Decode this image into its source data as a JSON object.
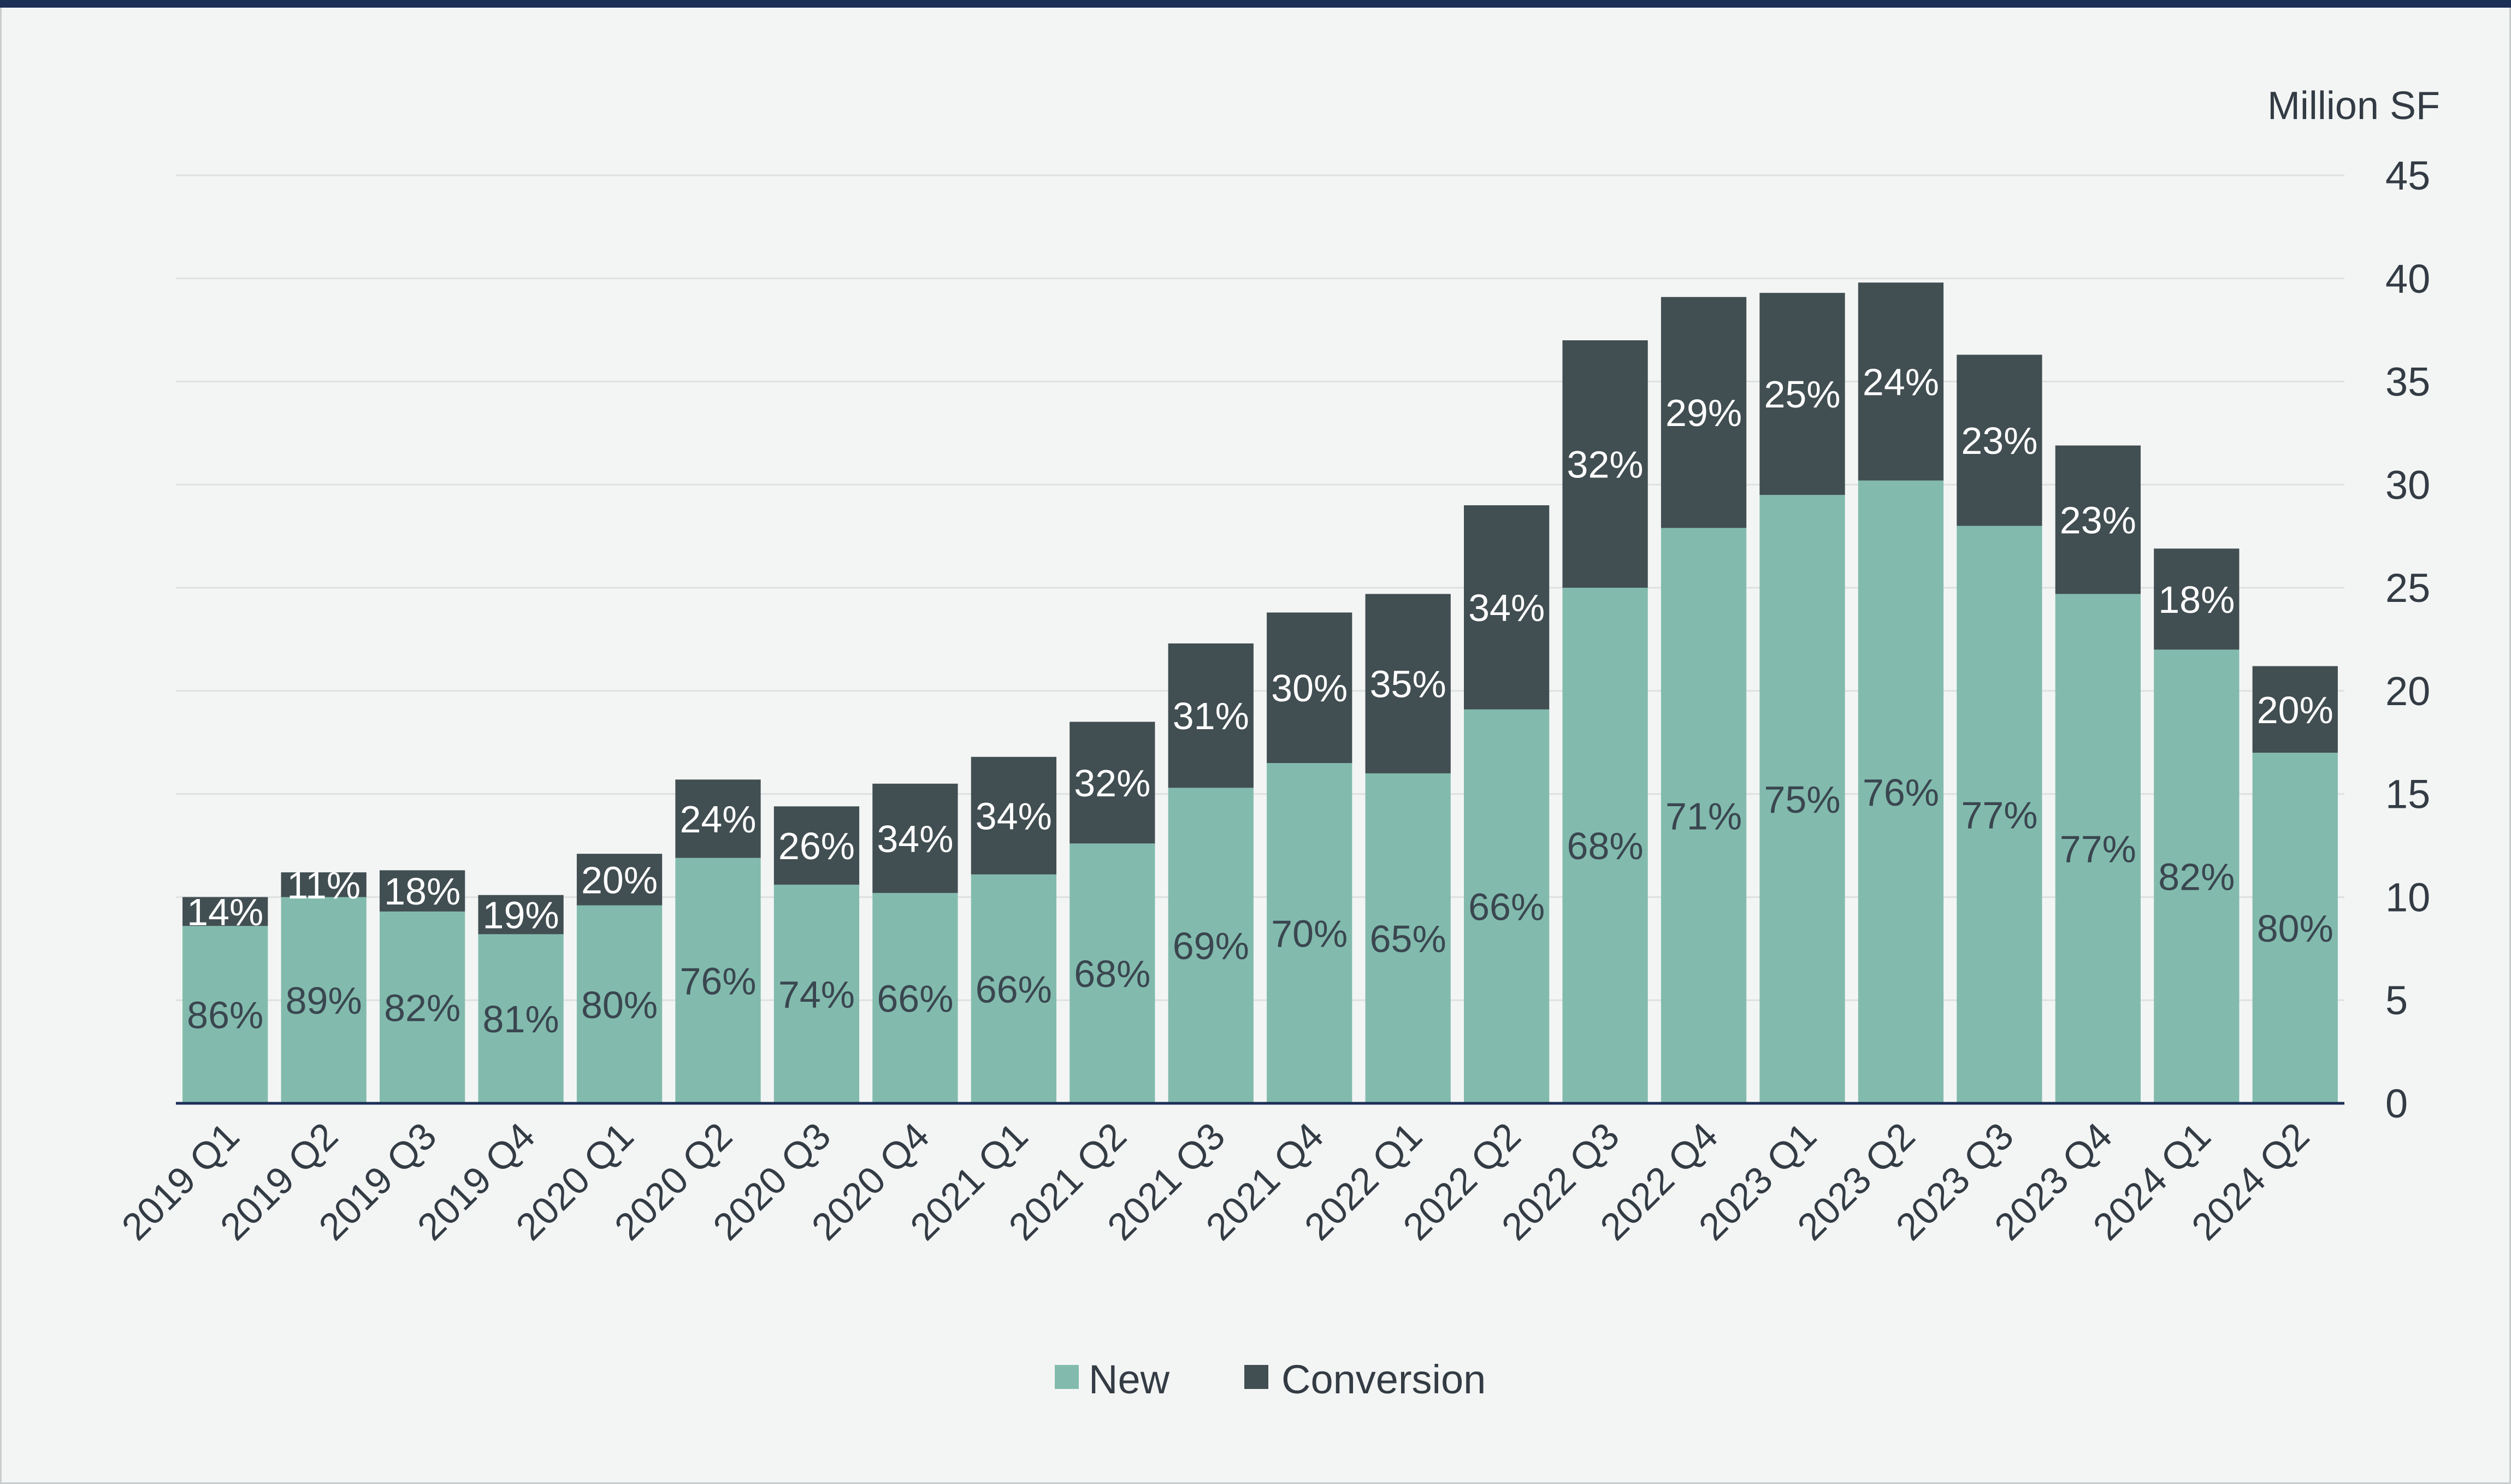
{
  "chart_data": {
    "type": "bar",
    "stacked": true,
    "unit_label": "Million SF",
    "ylim": [
      0,
      45
    ],
    "yticks": [
      0,
      5,
      10,
      15,
      20,
      25,
      30,
      35,
      40,
      45
    ],
    "grid": true,
    "legend_position": "bottom-center",
    "categories": [
      "2019 Q1",
      "2019 Q2",
      "2019 Q3",
      "2019 Q4",
      "2020 Q1",
      "2020 Q2",
      "2020 Q3",
      "2020 Q4",
      "2021 Q1",
      "2021 Q2",
      "2021 Q3",
      "2021 Q4",
      "2022 Q1",
      "2022 Q2",
      "2022 Q3",
      "2022 Q4",
      "2023 Q1",
      "2023 Q2",
      "2023 Q3",
      "2023 Q4",
      "2024 Q1",
      "2024 Q2"
    ],
    "series": [
      {
        "name": "New",
        "color": "#82bbad",
        "values": [
          8.6,
          10.0,
          9.3,
          8.2,
          9.6,
          11.9,
          10.6,
          10.2,
          11.1,
          12.6,
          15.3,
          16.5,
          16.0,
          19.1,
          25.0,
          27.9,
          29.5,
          30.2,
          28.0,
          24.7,
          22.0,
          17.0
        ],
        "labels": [
          "86%",
          "89%",
          "82%",
          "81%",
          "80%",
          "76%",
          "74%",
          "66%",
          "66%",
          "68%",
          "69%",
          "70%",
          "65%",
          "66%",
          "68%",
          "71%",
          "75%",
          "76%",
          "77%",
          "77%",
          "82%",
          "80%"
        ]
      },
      {
        "name": "Conversion",
        "color": "#414e52",
        "values": [
          1.4,
          1.2,
          2.0,
          1.9,
          2.5,
          3.8,
          3.8,
          5.3,
          5.7,
          5.9,
          7.0,
          7.3,
          8.7,
          9.9,
          12.0,
          11.2,
          9.8,
          9.6,
          8.3,
          7.2,
          4.9,
          4.2
        ],
        "labels": [
          "14%",
          "11%",
          "18%",
          "19%",
          "20%",
          "24%",
          "26%",
          "34%",
          "34%",
          "32%",
          "31%",
          "30%",
          "35%",
          "34%",
          "32%",
          "29%",
          "25%",
          "24%",
          "23%",
          "23%",
          "18%",
          "20%"
        ]
      }
    ],
    "axis_color": "#1c2f57",
    "grid_color": "#dde1e0",
    "accent_bar_color": "#1c2f57"
  }
}
